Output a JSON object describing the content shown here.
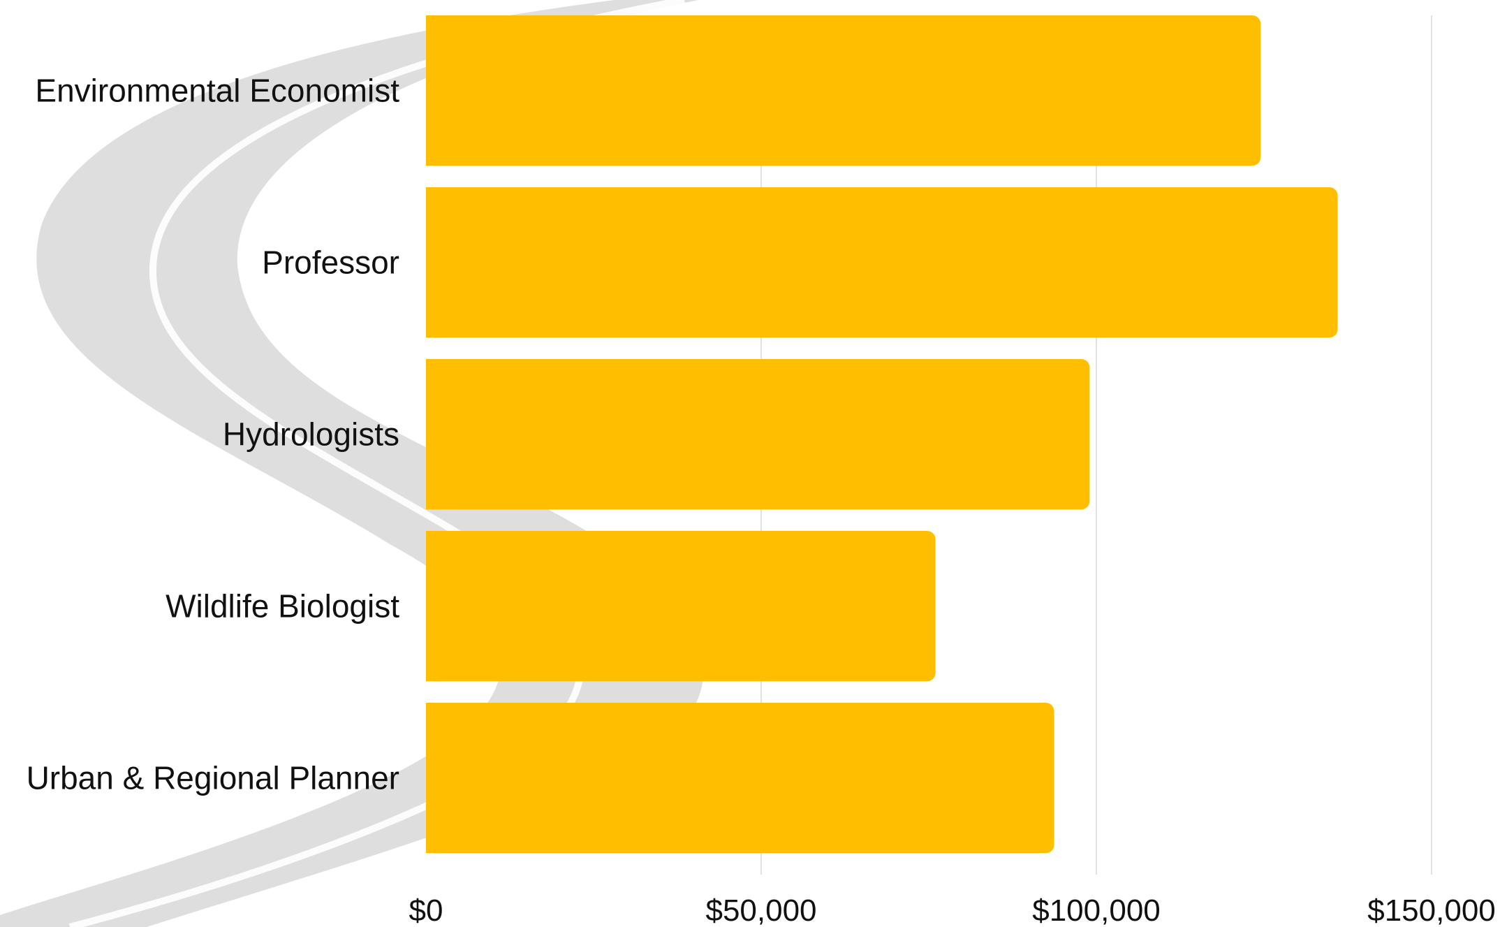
{
  "chart_data": {
    "type": "bar",
    "orientation": "horizontal",
    "categories": [
      "Environmental Economist",
      "Professor",
      "Hydrologists",
      "Wildlife Biologist",
      "Urban & Regional Planner"
    ],
    "values": [
      124500,
      136000,
      99000,
      76000,
      93700
    ],
    "xlim": [
      0,
      160000
    ],
    "xticks": [
      0,
      50000,
      100000,
      150000
    ],
    "tick_labels": [
      "$0",
      "$50,000",
      "$100,000",
      "$150,000"
    ],
    "grid": true,
    "bar_color": "#FFBF00",
    "grid_color": "#e2e2e2",
    "background_graphic": "winding-road-watermark",
    "watermark_color": "#d9d9d9"
  }
}
